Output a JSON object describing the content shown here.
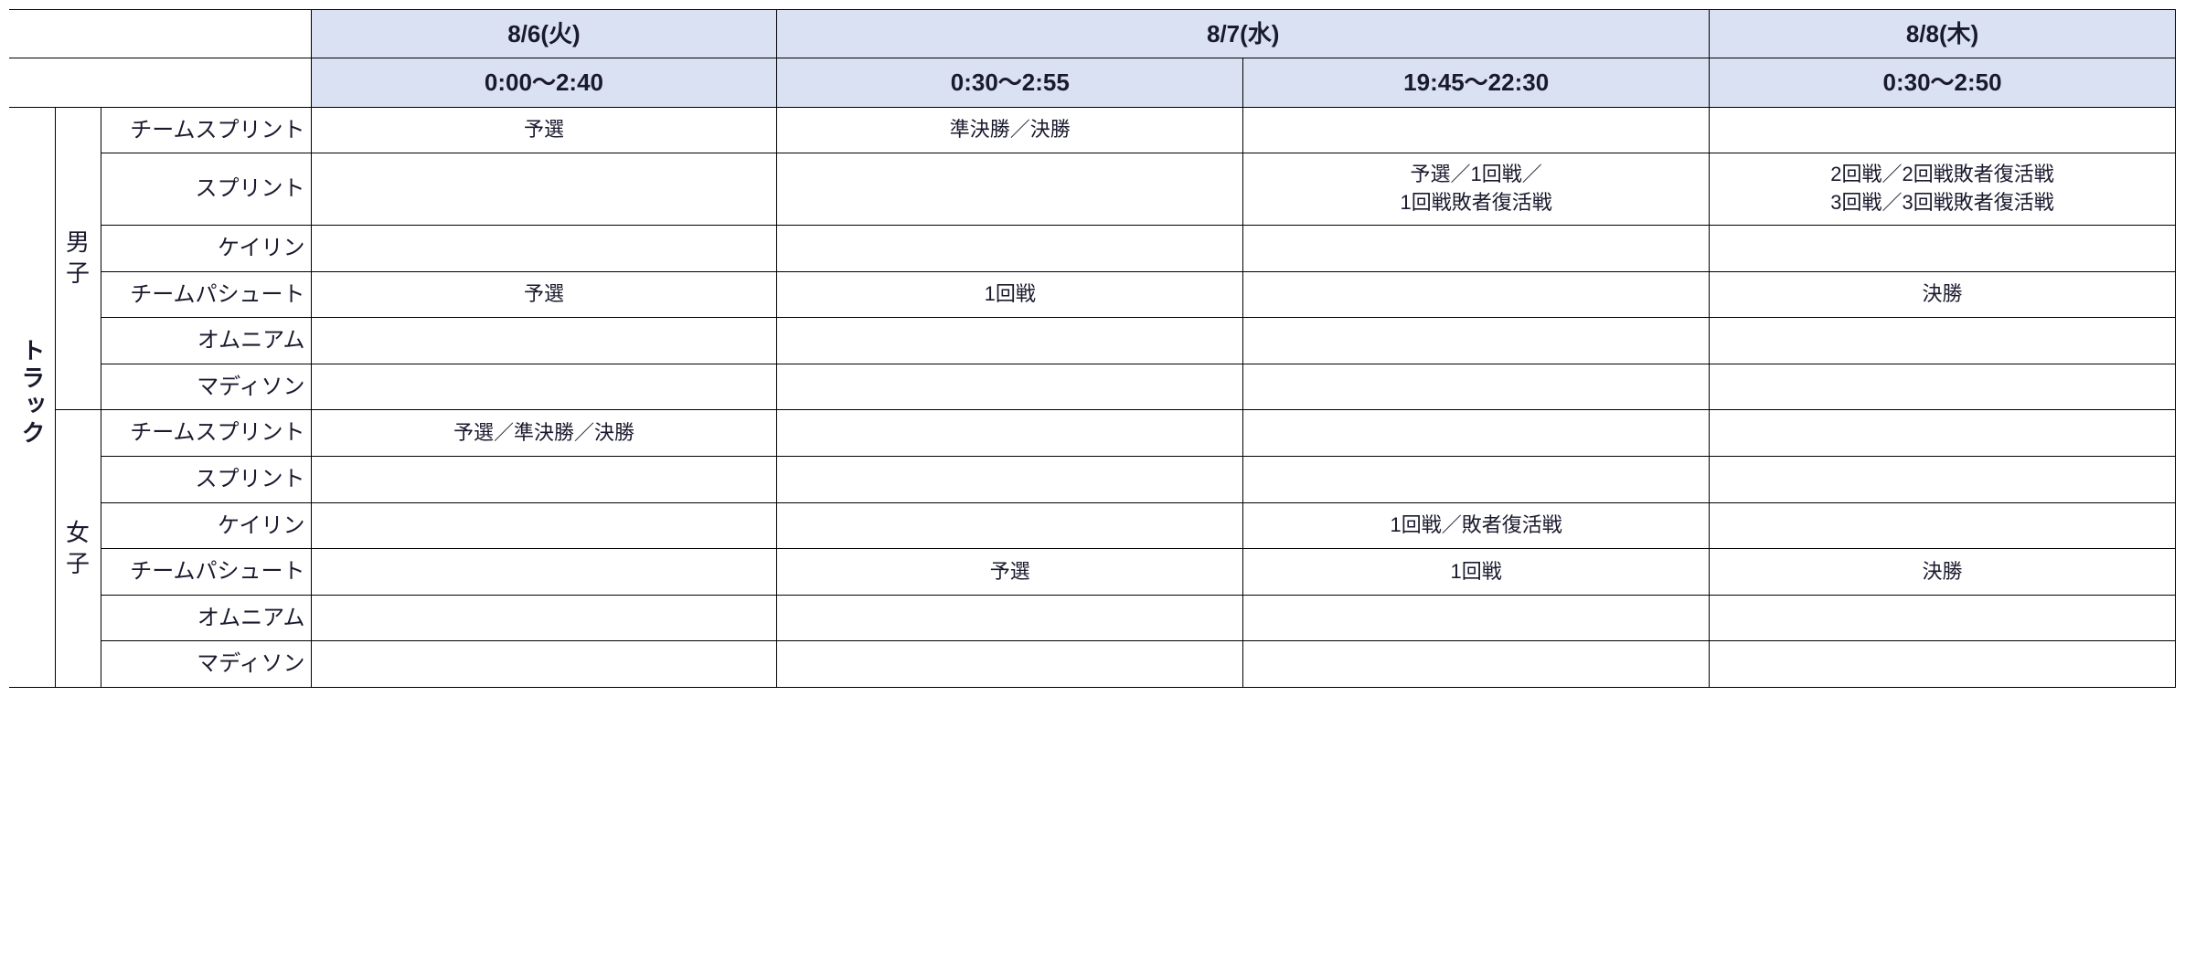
{
  "header": {
    "dates": [
      "8/6(火)",
      "8/7(水)",
      "8/8(木)"
    ],
    "date_colspans": [
      1,
      2,
      1
    ],
    "times": [
      "0:00～2:40",
      "0:30～2:55",
      "19:45～22:30",
      "0:30～2:50"
    ]
  },
  "category": "トラック",
  "genders": {
    "men": "男\n子",
    "women": "女\n子"
  },
  "events": {
    "team_sprint": "チームスプリント",
    "sprint": "スプリント",
    "keirin": "ケイリン",
    "team_pursuit": "チームパシュート",
    "omnium": "オムニアム",
    "madison": "マディソン"
  },
  "schedule": {
    "men": {
      "team_sprint": [
        "予選",
        "準決勝／決勝",
        "",
        ""
      ],
      "sprint": [
        "",
        "",
        "予選／1回戦／\n1回戦敗者復活戦",
        "2回戦／2回戦敗者復活戦\n3回戦／3回戦敗者復活戦"
      ],
      "keirin": [
        "",
        "",
        "",
        ""
      ],
      "team_pursuit": [
        "予選",
        "1回戦",
        "",
        "決勝"
      ],
      "omnium": [
        "",
        "",
        "",
        ""
      ],
      "madison": [
        "",
        "",
        "",
        ""
      ]
    },
    "women": {
      "team_sprint": [
        "予選／準決勝／決勝",
        "",
        "",
        ""
      ],
      "sprint": [
        "",
        "",
        "",
        ""
      ],
      "keirin": [
        "",
        "",
        "1回戦／敗者復活戦",
        ""
      ],
      "team_pursuit": [
        "",
        "予選",
        "1回戦",
        "決勝"
      ],
      "omnium": [
        "",
        "",
        "",
        ""
      ],
      "madison": [
        "",
        "",
        "",
        ""
      ]
    }
  },
  "colors": {
    "header_bg": "#d9e1f2",
    "border": "#000000",
    "text": "#1a1a2e",
    "background": "#ffffff"
  }
}
